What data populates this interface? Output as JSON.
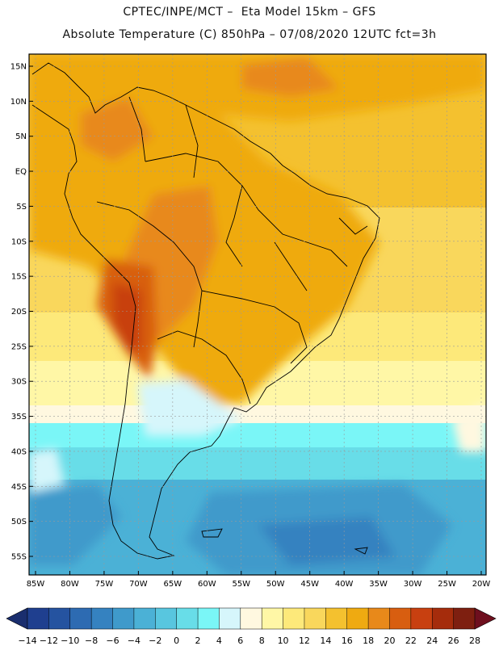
{
  "header": {
    "line1": "CPTEC/INPE/MCT –  Eta Model 15km – GFS",
    "line2": "Absolute Temperature (C) 850hPa – 07/08/2020 12UTC fct=3h"
  },
  "map": {
    "lat_labels": [
      "15N",
      "10N",
      "5N",
      "EQ",
      "5S",
      "10S",
      "15S",
      "20S",
      "25S",
      "30S",
      "35S",
      "40S",
      "45S",
      "50S",
      "55S"
    ],
    "lat_values": [
      15,
      10,
      5,
      0,
      -5,
      -10,
      -15,
      -20,
      -25,
      -30,
      -35,
      -40,
      -45,
      -50,
      -55
    ],
    "lon_labels": [
      "85W",
      "80W",
      "75W",
      "70W",
      "65W",
      "60W",
      "55W",
      "50W",
      "45W",
      "40W",
      "35W",
      "30W",
      "25W",
      "20W"
    ],
    "lon_values": [
      -85,
      -80,
      -75,
      -70,
      -65,
      -60,
      -55,
      -50,
      -45,
      -40,
      -35,
      -30,
      -25,
      -20
    ]
  },
  "colorbar": {
    "labels": [
      "-14",
      "-12",
      "-10",
      "-8",
      "-6",
      "-4",
      "-2",
      "0",
      "2",
      "4",
      "6",
      "8",
      "10",
      "12",
      "14",
      "16",
      "18",
      "20",
      "22",
      "24",
      "26",
      "28"
    ],
    "colors": [
      "#1f3f8f",
      "#2553a0",
      "#2d6bb2",
      "#3582c0",
      "#3f9acb",
      "#4bb1d6",
      "#58c6df",
      "#68dde8",
      "#7af6f7",
      "#d6f6fb",
      "#fff8e0",
      "#fff7a6",
      "#fde97a",
      "#f9d75c",
      "#f4c12f",
      "#efaa11",
      "#e8891a",
      "#d85e10",
      "#c84010",
      "#a52c0c",
      "#7e1f10"
    ],
    "left_arrow_color": "#1a2e6e",
    "right_arrow_color": "#6e0f1e"
  }
}
